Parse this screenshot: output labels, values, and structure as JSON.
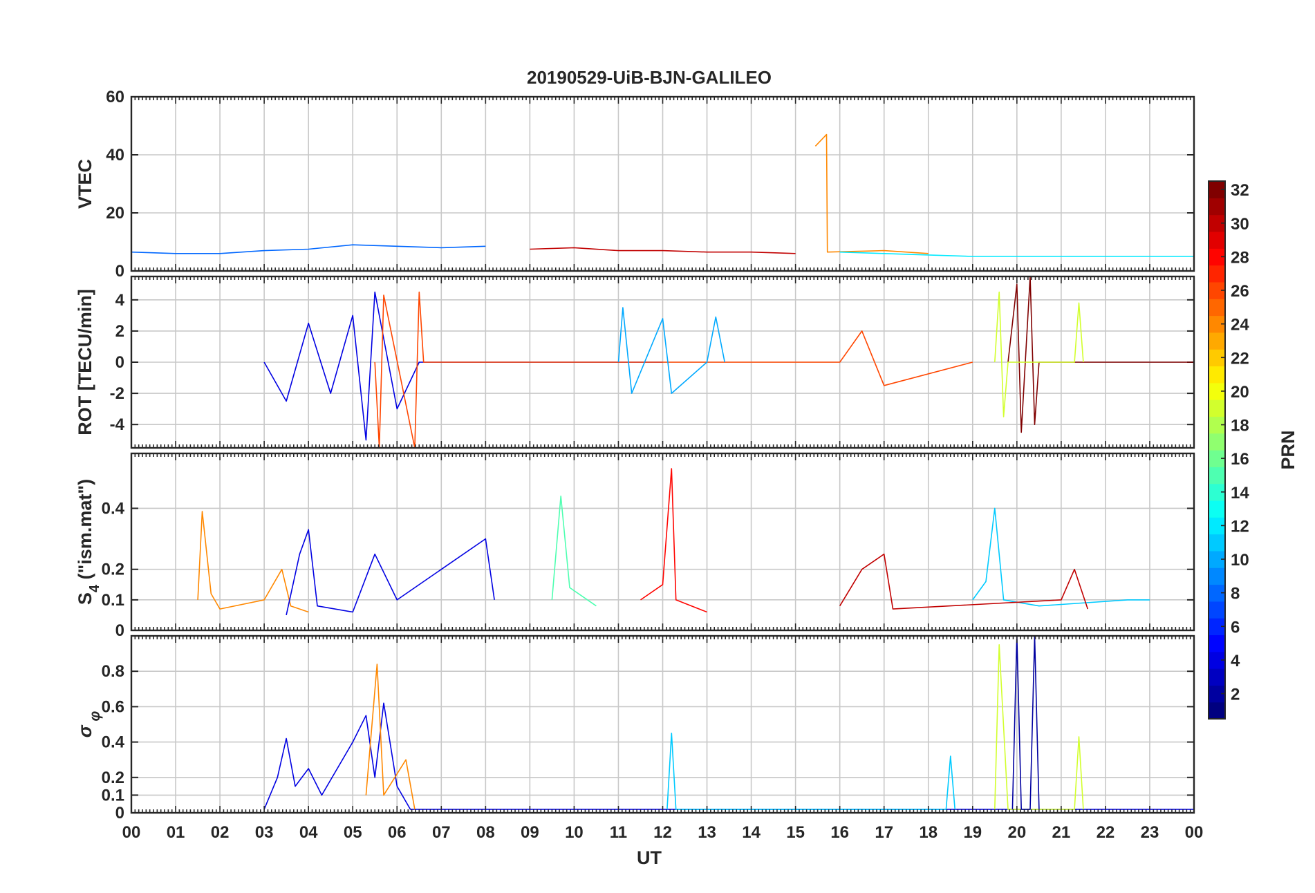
{
  "chart_data": {
    "type": "line",
    "title": "20190529-UiB-BJN-GALILEO",
    "xlabel": "UT",
    "x_tick_labels": [
      "00",
      "01",
      "02",
      "03",
      "04",
      "05",
      "06",
      "07",
      "08",
      "09",
      "10",
      "11",
      "12",
      "13",
      "14",
      "15",
      "16",
      "17",
      "18",
      "19",
      "20",
      "21",
      "22",
      "23",
      "00"
    ],
    "xlim": [
      0,
      24
    ],
    "panels": [
      {
        "id": "vtec",
        "ylabel": "VTEC",
        "ylim": [
          0,
          60
        ],
        "yticks": [
          0,
          20,
          40,
          60
        ],
        "ytick_labels": [
          "0",
          "20",
          "40",
          "60"
        ],
        "series": [
          {
            "prn": 24,
            "points": [
              [
                15.45,
                43
              ],
              [
                15.7,
                47
              ],
              [
                15.72,
                6.5
              ],
              [
                17,
                7
              ],
              [
                18,
                6
              ]
            ]
          },
          {
            "prn": 8,
            "points": [
              [
                0,
                6.5
              ],
              [
                1,
                6
              ],
              [
                2,
                6
              ],
              [
                3,
                7
              ],
              [
                4,
                7.5
              ],
              [
                5,
                9
              ],
              [
                6,
                8.5
              ],
              [
                7,
                8
              ],
              [
                8,
                8.5
              ]
            ]
          },
          {
            "prn": 30,
            "points": [
              [
                9,
                7.5
              ],
              [
                10,
                8
              ],
              [
                11,
                7
              ],
              [
                12,
                7
              ],
              [
                13,
                6.5
              ],
              [
                14,
                6.5
              ],
              [
                15,
                6
              ]
            ]
          },
          {
            "prn": 12,
            "points": [
              [
                16,
                6.5
              ],
              [
                17,
                6
              ],
              [
                18,
                5.5
              ],
              [
                19,
                5
              ],
              [
                20,
                5
              ],
              [
                21,
                5
              ],
              [
                22,
                5
              ],
              [
                23,
                5
              ],
              [
                24,
                5
              ]
            ]
          }
        ]
      },
      {
        "id": "rot",
        "ylabel": "ROT [TECU/min]",
        "ylim": [
          -5.5,
          5.5
        ],
        "yticks": [
          -4,
          -2,
          0,
          2,
          4
        ],
        "ytick_labels": [
          "-4",
          "-2",
          "0",
          "2",
          "4"
        ],
        "series": [
          {
            "prn": 4,
            "points": [
              [
                3,
                0
              ],
              [
                3.5,
                -2.5
              ],
              [
                4,
                2.5
              ],
              [
                4.5,
                -2
              ],
              [
                5,
                3
              ],
              [
                5.3,
                -5
              ],
              [
                5.5,
                4.5
              ],
              [
                6,
                -3
              ],
              [
                6.5,
                0
              ],
              [
                7,
                0
              ],
              [
                12,
                0
              ]
            ]
          },
          {
            "prn": 26,
            "points": [
              [
                5.5,
                0
              ],
              [
                5.6,
                -5.5
              ],
              [
                5.7,
                4.3
              ],
              [
                6.4,
                -5.5
              ],
              [
                6.5,
                4.5
              ],
              [
                6.6,
                0
              ],
              [
                16,
                0
              ],
              [
                16.5,
                2
              ],
              [
                17,
                -1.5
              ],
              [
                19,
                0
              ]
            ]
          },
          {
            "prn": 10,
            "points": [
              [
                11,
                0
              ],
              [
                11.1,
                3.5
              ],
              [
                11.3,
                -2
              ],
              [
                12,
                2.8
              ],
              [
                12.2,
                -2
              ],
              [
                13,
                0
              ],
              [
                13.2,
                2.9
              ],
              [
                13.4,
                0
              ]
            ]
          },
          {
            "prn": 32,
            "points": [
              [
                19.8,
                0
              ],
              [
                20,
                5
              ],
              [
                20.1,
                -4.5
              ],
              [
                20.3,
                5.5
              ],
              [
                20.4,
                -4
              ],
              [
                20.5,
                0
              ],
              [
                24,
                0
              ]
            ]
          },
          {
            "prn": 19,
            "points": [
              [
                19.5,
                0
              ],
              [
                19.6,
                4.5
              ],
              [
                19.7,
                -3.5
              ],
              [
                19.8,
                0
              ],
              [
                21.3,
                0
              ],
              [
                21.4,
                3.8
              ],
              [
                21.5,
                0
              ]
            ]
          }
        ]
      },
      {
        "id": "s4",
        "ylabel": "S4 (\"ism.mat\")",
        "ylabel_parts": [
          "S",
          "4",
          " (\"ism.mat\")"
        ],
        "ylim": [
          0,
          0.58
        ],
        "yticks": [
          0,
          0.1,
          0.2,
          0.4
        ],
        "ytick_labels": [
          "0",
          "0.1",
          "0.2",
          "0.4"
        ],
        "series": [
          {
            "prn": 24,
            "points": [
              [
                1.5,
                0.1
              ],
              [
                1.6,
                0.39
              ],
              [
                1.8,
                0.12
              ],
              [
                2,
                0.07
              ],
              [
                3,
                0.1
              ],
              [
                3.4,
                0.2
              ],
              [
                3.6,
                0.08
              ],
              [
                4,
                0.06
              ]
            ]
          },
          {
            "prn": 4,
            "points": [
              [
                3.5,
                0.05
              ],
              [
                3.8,
                0.25
              ],
              [
                4,
                0.33
              ],
              [
                4.2,
                0.08
              ],
              [
                5,
                0.06
              ],
              [
                5.5,
                0.25
              ],
              [
                6,
                0.1
              ],
              [
                8,
                0.3
              ],
              [
                8.2,
                0.1
              ]
            ]
          },
          {
            "prn": 15,
            "points": [
              [
                9.5,
                0.1
              ],
              [
                9.7,
                0.44
              ],
              [
                9.9,
                0.14
              ],
              [
                10.5,
                0.08
              ]
            ]
          },
          {
            "prn": 28,
            "points": [
              [
                11.5,
                0.1
              ],
              [
                12,
                0.15
              ],
              [
                12.2,
                0.53
              ],
              [
                12.3,
                0.1
              ],
              [
                13,
                0.06
              ]
            ]
          },
          {
            "prn": 11,
            "points": [
              [
                19,
                0.1
              ],
              [
                19.3,
                0.16
              ],
              [
                19.5,
                0.4
              ],
              [
                19.7,
                0.1
              ],
              [
                20.5,
                0.08
              ],
              [
                22.5,
                0.1
              ],
              [
                23,
                0.1
              ]
            ]
          },
          {
            "prn": 30,
            "points": [
              [
                16,
                0.08
              ],
              [
                16.5,
                0.2
              ],
              [
                17,
                0.25
              ],
              [
                17.2,
                0.07
              ],
              [
                21,
                0.1
              ],
              [
                21.3,
                0.2
              ],
              [
                21.6,
                0.07
              ]
            ]
          }
        ]
      },
      {
        "id": "sigma_phi",
        "ylabel": "σφ",
        "ylabel_parts": [
          "σ",
          "φ"
        ],
        "ylim": [
          0,
          1
        ],
        "yticks": [
          0,
          0.1,
          0.2,
          0.4,
          0.6,
          0.8
        ],
        "ytick_labels": [
          "0",
          "0.1",
          "0.2",
          "0.4",
          "0.6",
          "0.8"
        ],
        "series": [
          {
            "prn": 4,
            "points": [
              [
                3,
                0.02
              ],
              [
                3.3,
                0.2
              ],
              [
                3.5,
                0.42
              ],
              [
                3.7,
                0.15
              ],
              [
                4,
                0.25
              ],
              [
                4.3,
                0.1
              ],
              [
                5,
                0.4
              ],
              [
                5.3,
                0.55
              ],
              [
                5.5,
                0.2
              ],
              [
                5.7,
                0.62
              ],
              [
                6,
                0.15
              ],
              [
                6.3,
                0.02
              ],
              [
                24,
                0.02
              ]
            ]
          },
          {
            "prn": 24,
            "points": [
              [
                5.3,
                0.1
              ],
              [
                5.55,
                0.84
              ],
              [
                5.7,
                0.1
              ],
              [
                6.2,
                0.3
              ],
              [
                6.4,
                0.02
              ]
            ]
          },
          {
            "prn": 11,
            "points": [
              [
                12.1,
                0.02
              ],
              [
                12.2,
                0.45
              ],
              [
                12.3,
                0.02
              ],
              [
                18.4,
                0.02
              ],
              [
                18.5,
                0.32
              ],
              [
                18.6,
                0.02
              ]
            ]
          },
          {
            "prn": 19,
            "points": [
              [
                19.5,
                0.02
              ],
              [
                19.6,
                0.95
              ],
              [
                19.8,
                0.02
              ],
              [
                21.3,
                0.02
              ],
              [
                21.4,
                0.43
              ],
              [
                21.5,
                0.02
              ]
            ]
          },
          {
            "prn": 2,
            "points": [
              [
                19.9,
                0.02
              ],
              [
                20,
                1.0
              ],
              [
                20.1,
                0.02
              ],
              [
                20.3,
                0.02
              ],
              [
                20.4,
                1.0
              ],
              [
                20.5,
                0.02
              ]
            ]
          }
        ]
      }
    ],
    "colorbar": {
      "label": "PRN",
      "range": [
        1,
        32
      ],
      "ticks": [
        2,
        4,
        6,
        8,
        10,
        12,
        14,
        16,
        18,
        20,
        22,
        24,
        26,
        28,
        30,
        32
      ],
      "tick_labels": [
        "2",
        "4",
        "6",
        "8",
        "10",
        "12",
        "14",
        "16",
        "18",
        "20",
        "22",
        "24",
        "26",
        "28",
        "30",
        "32"
      ],
      "colormap": "jet"
    },
    "grid": true
  }
}
